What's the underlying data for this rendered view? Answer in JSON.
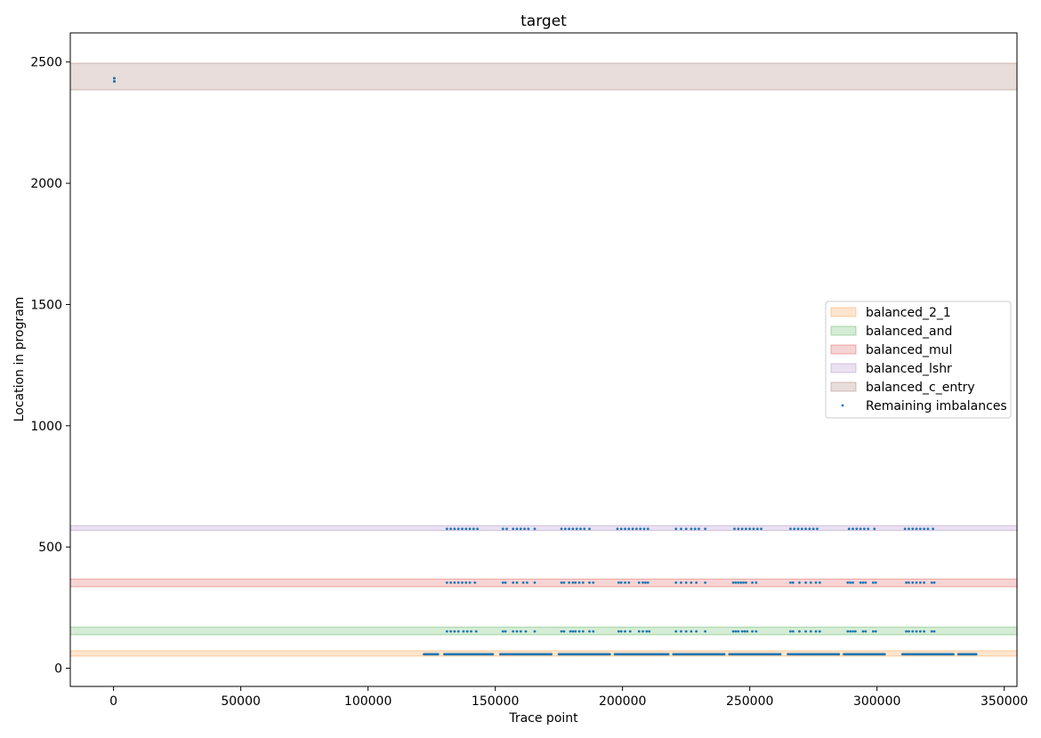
{
  "chart_data": {
    "type": "scatter",
    "title": "target",
    "xlabel": "Trace point",
    "ylabel": "Location in program",
    "xlim": [
      -17000,
      355000
    ],
    "ylim": [
      -75,
      2620
    ],
    "xticks": [
      0,
      50000,
      100000,
      150000,
      200000,
      250000,
      300000,
      350000
    ],
    "xtick_labels": [
      "0",
      "50000",
      "100000",
      "150000",
      "200000",
      "250000",
      "300000",
      "350000"
    ],
    "yticks": [
      0,
      500,
      1000,
      1500,
      2000,
      2500
    ],
    "ytick_labels": [
      "0",
      "500",
      "1000",
      "1500",
      "2000",
      "2500"
    ],
    "grid": false,
    "legend_position": "center-right",
    "bands": [
      {
        "name": "balanced_c_entry",
        "y_range": [
          2385,
          2495
        ],
        "color": "#8c564b"
      },
      {
        "name": "balanced_lshr",
        "y_range": [
          568,
          588
        ],
        "color": "#9467bd"
      },
      {
        "name": "balanced_mul",
        "y_range": [
          336,
          368
        ],
        "color": "#d62728"
      },
      {
        "name": "balanced_and",
        "y_range": [
          138,
          170
        ],
        "color": "#2ca02c"
      },
      {
        "name": "balanced_2_1",
        "y_range": [
          50,
          72
        ],
        "color": "#ff7f0e"
      }
    ],
    "scatter_series": {
      "name": "Remaining imbalances",
      "color": "#1f77b4",
      "point_groups": [
        {
          "y": 2433,
          "x": [
            250,
            300,
            350
          ]
        },
        {
          "y": 2420,
          "x": [
            250,
            300,
            350
          ]
        },
        {
          "y": 575,
          "x": [
            131000,
            132500,
            134000,
            135500,
            137000,
            138500,
            140000,
            141500,
            143000,
            153000,
            154500,
            157000,
            158500,
            160000,
            161500,
            163000,
            165500,
            176000,
            177500,
            179000,
            180500,
            182000,
            183500,
            185000,
            187000,
            198000,
            199500,
            201000,
            202500,
            204000,
            205500,
            207000,
            208500,
            210000,
            221000,
            223000,
            225000,
            227000,
            228500,
            230000,
            232500,
            244000,
            245500,
            247000,
            248500,
            250000,
            251500,
            253000,
            254500,
            266000,
            267500,
            269000,
            270500,
            272000,
            273500,
            275000,
            276500,
            289000,
            290500,
            292000,
            293500,
            295000,
            296500,
            299000,
            311000,
            312500,
            314000,
            315500,
            317000,
            318500,
            320000,
            322000
          ]
        },
        {
          "y": 353,
          "x": [
            131000,
            132500,
            134000,
            135500,
            137000,
            138500,
            140000,
            142000,
            153000,
            154000,
            157000,
            158500,
            161000,
            162500,
            165500,
            176000,
            177000,
            179000,
            180500,
            181500,
            183000,
            184500,
            187000,
            188500,
            198500,
            199500,
            201000,
            202500,
            206500,
            208000,
            209000,
            210000,
            221000,
            223000,
            225000,
            227000,
            229000,
            232500,
            243500,
            244500,
            245500,
            246500,
            247500,
            248500,
            251000,
            252500,
            266000,
            267000,
            269500,
            272000,
            274000,
            276000,
            277500,
            288500,
            289500,
            290500,
            293500,
            294500,
            295500,
            298500,
            299500,
            311500,
            312500,
            314000,
            315500,
            317000,
            318500,
            321500,
            322500
          ]
        },
        {
          "y": 152,
          "x": [
            131000,
            132500,
            134000,
            135500,
            137500,
            139000,
            140500,
            142500,
            153000,
            154000,
            157000,
            158500,
            160000,
            162000,
            165500,
            176000,
            177000,
            179500,
            180500,
            181500,
            183000,
            184500,
            187000,
            188500,
            198500,
            199500,
            201000,
            203000,
            206500,
            208000,
            209500,
            210500,
            221000,
            223000,
            225000,
            227000,
            229000,
            232500,
            243500,
            244500,
            245500,
            247000,
            248000,
            249000,
            251000,
            252500,
            266000,
            267000,
            269500,
            272000,
            274000,
            276000,
            277500,
            288500,
            289500,
            290500,
            291500,
            294500,
            295500,
            298500,
            299500,
            311500,
            312500,
            314000,
            315500,
            317000,
            318500,
            321500,
            322500
          ]
        },
        {
          "y": 58,
          "x_ranges": [
            [
              122000,
              127500
            ],
            [
              130000,
              149000
            ],
            [
              152000,
              172000
            ],
            [
              175000,
              195000
            ],
            [
              197000,
              218000
            ],
            [
              220000,
              240000
            ],
            [
              242000,
              262000
            ],
            [
              265000,
              285000
            ],
            [
              287000,
              303000
            ],
            [
              310000,
              330000
            ],
            [
              332000,
              339000
            ]
          ],
          "x_step": 500
        }
      ]
    }
  }
}
